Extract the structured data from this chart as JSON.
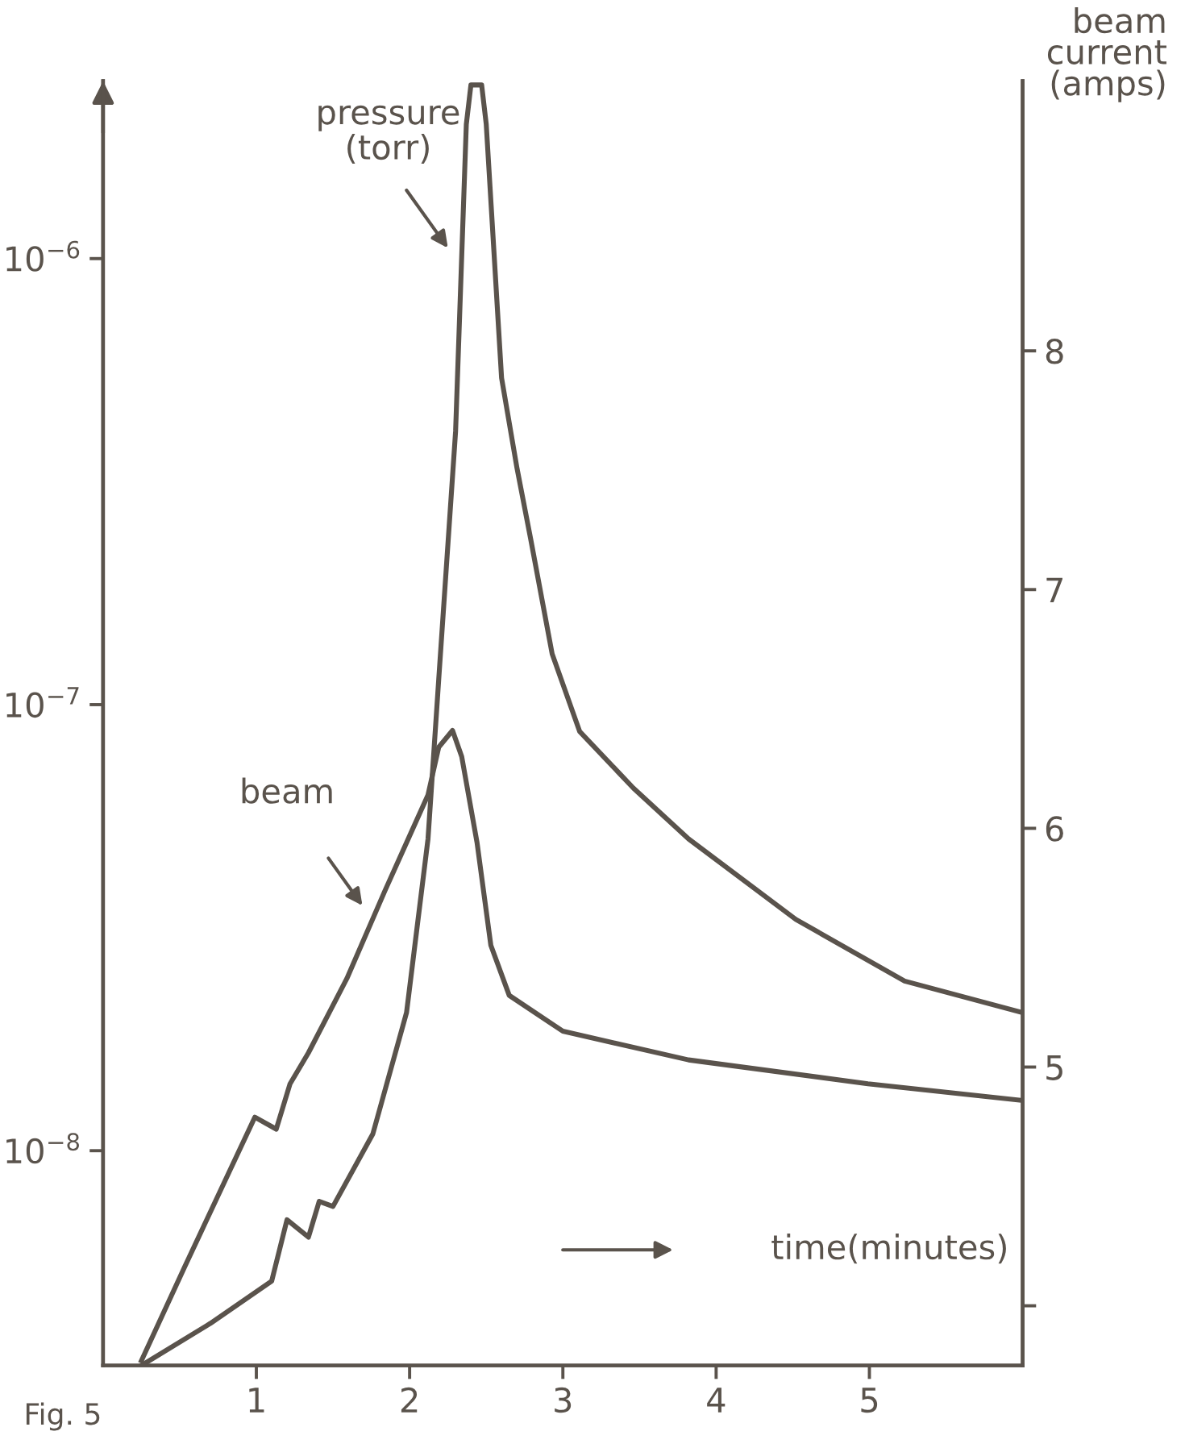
{
  "chart_data": {
    "type": "line",
    "xlabel": "time(minutes)",
    "y2label": "beam\ncurrent\n(amps)",
    "annotations": [
      "Fig. 5"
    ],
    "xlim": [
      0,
      6
    ],
    "xticks": [
      1,
      2,
      3,
      4,
      5
    ],
    "log": "y",
    "ylim": [
      3.3e-09,
      2.5e-06
    ],
    "yticks": [
      {
        "value": 1e-08,
        "label": "10$^{−8}$"
      },
      {
        "value": 1e-07,
        "label": "10$^{−7}$"
      },
      {
        "value": 1e-06,
        "label": "10$^{−6}$"
      }
    ],
    "y2lim": [
      3.75,
      9.13
    ],
    "y2ticks": [
      {
        "value": 4,
        "label": null
      },
      5,
      6,
      7,
      8
    ],
    "grid": false,
    "marker": "none",
    "line_style": "solid",
    "series": [
      {
        "name": "pressure\n(torr)",
        "color": "#5a534c",
        "x": [
          0.25,
          0.7,
          1.1,
          1.2,
          1.34,
          1.41,
          1.5,
          1.76,
          1.98,
          2.12,
          2.19,
          2.3,
          2.37,
          2.4,
          2.47,
          2.5,
          2.6,
          2.7,
          2.79,
          2.93,
          3.11,
          3.46,
          3.82,
          4.52,
          5.23,
          6.0
        ],
        "values": [
          3.3e-09,
          4.1e-09,
          5.1e-09,
          7e-09,
          6.4e-09,
          7.7e-09,
          7.5e-09,
          1.09e-08,
          2.04e-08,
          5e-08,
          1.14e-07,
          4.1e-07,
          2e-06,
          2.45e-06,
          2.45e-06,
          2e-06,
          5.4e-07,
          3.4e-07,
          2.35e-07,
          1.3e-07,
          8.7e-08,
          6.5e-08,
          5e-08,
          3.3e-08,
          2.4e-08,
          2.04e-08
        ]
      },
      {
        "name": "beam",
        "axis": "y2",
        "color": "#5a534c",
        "x": [
          0.25,
          0.53,
          0.99,
          1.13,
          1.22,
          1.34,
          1.59,
          1.84,
          2.12,
          2.19,
          2.28,
          2.34,
          2.44,
          2.53,
          2.65,
          3.0,
          3.82,
          4.99,
          6.0
        ],
        "values": [
          3.77,
          4.16,
          4.79,
          4.74,
          4.93,
          5.06,
          5.37,
          5.74,
          6.14,
          6.34,
          6.41,
          6.3,
          5.94,
          5.51,
          5.3,
          5.15,
          5.03,
          4.93,
          4.86
        ]
      }
    ]
  }
}
